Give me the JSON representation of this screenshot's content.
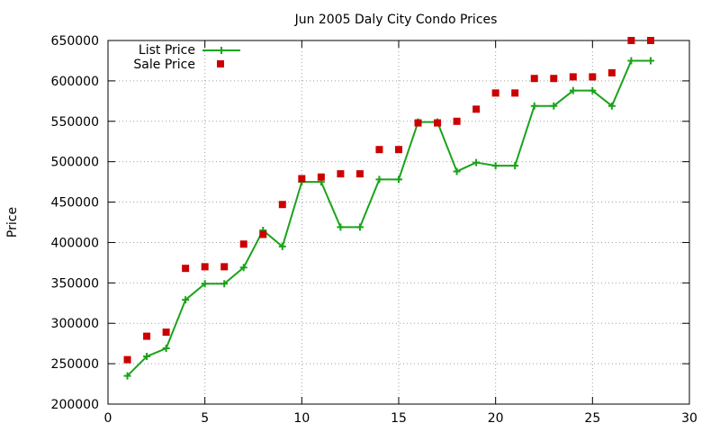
{
  "chart_data": {
    "type": "line",
    "title": "Jun 2005 Daly City Condo Prices",
    "xlabel": "",
    "ylabel": "Price",
    "xlim": [
      0,
      30
    ],
    "ylim": [
      200000,
      650000
    ],
    "x_ticks": [
      0,
      5,
      10,
      15,
      20,
      25,
      30
    ],
    "y_ticks": [
      200000,
      250000,
      300000,
      350000,
      400000,
      450000,
      500000,
      550000,
      600000,
      650000
    ],
    "grid": true,
    "legend_position": "top-left",
    "series": [
      {
        "name": "List Price",
        "style": "line-with-plus-markers",
        "color": "#1aa31a",
        "x": [
          1,
          2,
          3,
          4,
          5,
          6,
          7,
          8,
          9,
          10,
          11,
          12,
          13,
          14,
          15,
          16,
          17,
          18,
          19,
          20,
          21,
          22,
          23,
          24,
          25,
          26,
          27,
          28
        ],
        "y": [
          235000,
          259000,
          269000,
          329000,
          349000,
          349000,
          369000,
          415000,
          395000,
          475000,
          475000,
          419000,
          419000,
          478000,
          478000,
          549000,
          549000,
          488000,
          499000,
          495000,
          495000,
          569000,
          569000,
          588000,
          588000,
          569000,
          625000,
          625000
        ]
      },
      {
        "name": "Sale Price",
        "style": "square-markers",
        "color": "#cc0000",
        "x": [
          1,
          2,
          3,
          4,
          5,
          6,
          7,
          8,
          9,
          10,
          11,
          12,
          13,
          14,
          15,
          16,
          17,
          18,
          19,
          20,
          21,
          22,
          23,
          24,
          25,
          26,
          27,
          28
        ],
        "y": [
          255000,
          284000,
          289000,
          368000,
          370000,
          370000,
          398000,
          410000,
          447000,
          479000,
          481000,
          485000,
          485000,
          515000,
          515000,
          548000,
          548000,
          550000,
          565000,
          585000,
          585000,
          603000,
          603000,
          605000,
          605000,
          610000,
          650000,
          650000
        ]
      }
    ]
  }
}
